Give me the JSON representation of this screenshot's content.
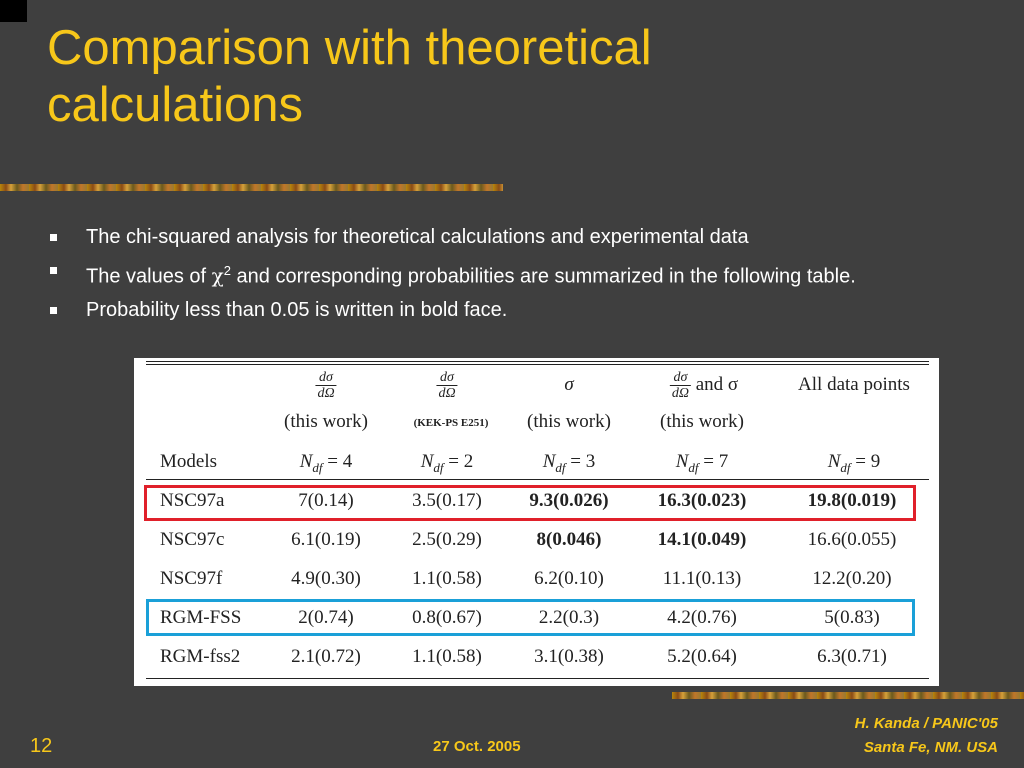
{
  "title": {
    "line1": "Comparison with theoretical",
    "line2": "calculations"
  },
  "bullets": [
    {
      "text": "The chi-squared analysis for theoretical calculations and experimental data"
    },
    {
      "prefix": "The values of ",
      "symbol": "χ",
      "sup": "2",
      "suffix": " and corresponding probabilities are summarized in the following table."
    },
    {
      "text": "Probability less than 0.05 is written in bold face."
    }
  ],
  "table": {
    "header": {
      "fraction_num": "dσ",
      "fraction_den": "dΩ",
      "sigma": "σ",
      "and_sigma": "and σ",
      "all_data": "All data points",
      "this_work_1": "(this work)",
      "kek": "(KEK-PS E251)",
      "this_work_2": "(this work)",
      "this_work_3": "(this work)",
      "models": "Models",
      "ndf_1": "N",
      "ndf_sub": "df",
      "ndf_val_1": " = 4",
      "ndf_val_2": " = 2",
      "ndf_val_3": " = 3",
      "ndf_val_4": " = 7",
      "ndf_val_5": " = 9"
    },
    "rows": [
      {
        "model": "NSC97a",
        "c1": "7(0.14)",
        "c2": "3.5(0.17)",
        "c3": "9.3(0.026)",
        "c4": "16.3(0.023)",
        "c5": "19.8(0.019)"
      },
      {
        "model": "NSC97c",
        "c1": "6.1(0.19)",
        "c2": "2.5(0.29)",
        "c3": "8(0.046)",
        "c4": "14.1(0.049)",
        "c5": "16.6(0.055)"
      },
      {
        "model": "NSC97f",
        "c1": "4.9(0.30)",
        "c2": "1.1(0.58)",
        "c3": "6.2(0.10)",
        "c4": "11.1(0.13)",
        "c5": "12.2(0.20)"
      },
      {
        "model": "RGM-FSS",
        "c1": "2(0.74)",
        "c2": "0.8(0.67)",
        "c3": "2.2(0.3)",
        "c4": "4.2(0.76)",
        "c5": "5(0.83)"
      },
      {
        "model": "RGM-fss2",
        "c1": "2.1(0.72)",
        "c2": "1.1(0.58)",
        "c3": "3.1(0.38)",
        "c4": "5.2(0.64)",
        "c5": "6.3(0.71)"
      }
    ],
    "highlight_colors": {
      "red": "#e0202a",
      "blue": "#1aa0d8"
    }
  },
  "footer": {
    "page": "12",
    "date": "27 Oct. 2005",
    "author": "H. Kanda / PANIC'05",
    "location": "Santa Fe, NM. USA"
  },
  "colors": {
    "background": "#3f3f3f",
    "title": "#f7c71a",
    "text": "#ffffff"
  }
}
